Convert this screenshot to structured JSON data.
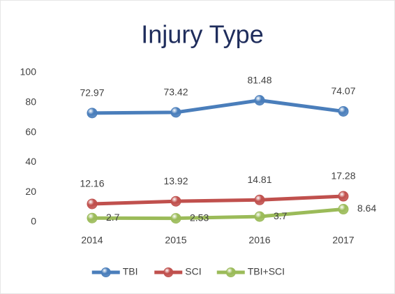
{
  "chart_data": {
    "type": "line",
    "title": "Injury Type",
    "categories": [
      "2014",
      "2015",
      "2016",
      "2017"
    ],
    "series": [
      {
        "name": "TBI",
        "color": "#4a7ebb",
        "values": [
          72.97,
          73.42,
          81.48,
          74.07
        ]
      },
      {
        "name": "SCI",
        "color": "#c0504d",
        "values": [
          12.16,
          13.92,
          14.81,
          17.28
        ]
      },
      {
        "name": "TBI+SCI",
        "color": "#9bbb59",
        "values": [
          2.7,
          2.53,
          3.7,
          8.64
        ]
      }
    ],
    "ylim": [
      0,
      100
    ],
    "yticks": [
      0,
      20,
      40,
      60,
      80,
      100
    ],
    "grid": false,
    "legend": "bottom"
  }
}
